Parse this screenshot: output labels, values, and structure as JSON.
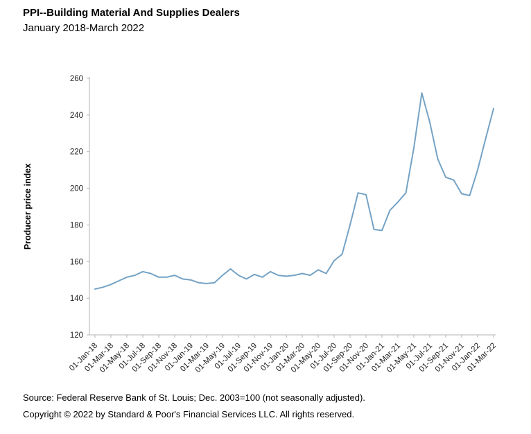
{
  "chart_data": {
    "type": "line",
    "title": "PPI--Building Material And Supplies Dealers",
    "subtitle": "January 2018-March 2022",
    "xlabel": "",
    "ylabel": "Producer price index",
    "ylim": [
      120,
      260
    ],
    "yticks": [
      120,
      140,
      160,
      180,
      200,
      220,
      240,
      260
    ],
    "grid": false,
    "legend": "none",
    "axis_color": "#b3b3b3",
    "tick_text_color": "#222222",
    "x_start": "2018-01",
    "x_freq": "monthly",
    "x_tick_labels": [
      "01-Jan-18",
      "01-Mar-18",
      "01-May-18",
      "01-Jul-18",
      "01-Sep-18",
      "01-Nov-18",
      "01-Jan-19",
      "01-Mar-19",
      "01-May-19",
      "01-Jul-19",
      "01-Sep-19",
      "01-Nov-19",
      "01-Jan-20",
      "01-Mar-20",
      "01-May-20",
      "01-Jul-20",
      "01-Sep-20",
      "01-Nov-20",
      "01-Jan-21",
      "01-Mar-21",
      "01-May-21",
      "01-Jul-21",
      "01-Sep-21",
      "01-Nov-21",
      "01-Jan-22",
      "01-Mar-22"
    ],
    "series": [
      {
        "name": "Producer price index",
        "color": "#74A2C5",
        "values": [
          145,
          146,
          147.5,
          149.5,
          151.5,
          152.5,
          154.5,
          153.5,
          151.5,
          151.5,
          152.5,
          150.5,
          150,
          148.5,
          148,
          148.5,
          152.5,
          156,
          152.5,
          150.5,
          153,
          151.5,
          154.5,
          152.5,
          152,
          152.5,
          153.5,
          152.5,
          155.5,
          153.5,
          160.5,
          164,
          180,
          197.5,
          196.5,
          177.5,
          177,
          188,
          192.5,
          197.5,
          222,
          252,
          236,
          216,
          206,
          204.5,
          197,
          196,
          210,
          227,
          243.5
        ]
      }
    ]
  },
  "footer": {
    "source": "Source: Federal Reserve Bank of St. Louis; Dec. 2003=100 (not seasonally adjusted).",
    "copyright": "Copyright © 2022 by Standard & Poor's Financial Services LLC. All rights reserved."
  }
}
